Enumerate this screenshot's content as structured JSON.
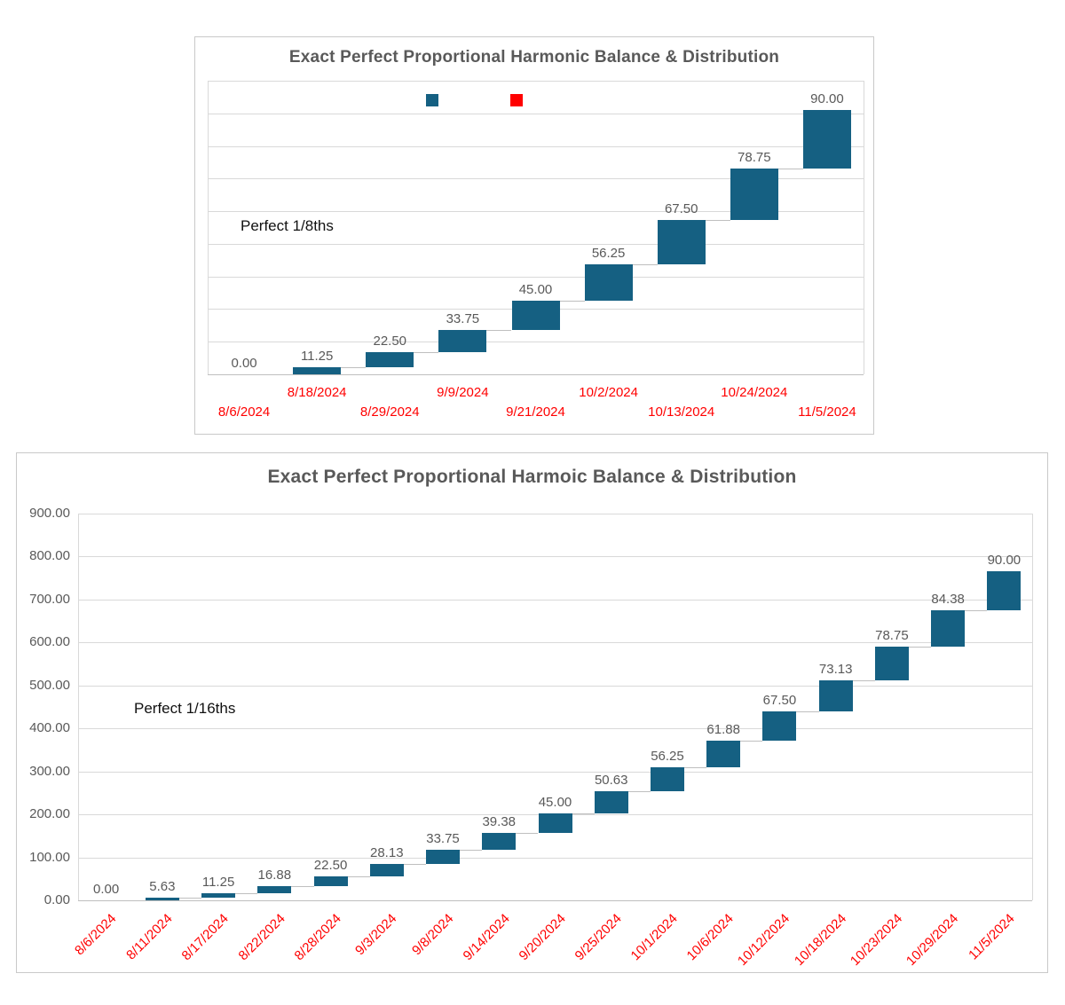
{
  "chart_data": [
    {
      "type": "bar",
      "subtype": "waterfall",
      "title": "Exact Perfect Proportional Harmonic Balance & Distribution",
      "annotation": "Perfect 1/8ths",
      "categories": [
        "8/6/2024",
        "8/18/2024",
        "8/29/2024",
        "9/9/2024",
        "9/21/2024",
        "10/2/2024",
        "10/13/2024",
        "10/24/2024",
        "11/5/2024"
      ],
      "values": [
        0,
        11.25,
        22.5,
        33.75,
        45,
        56.25,
        67.5,
        78.75,
        90
      ],
      "bar_labels": [
        "0.00",
        "11.25",
        "22.50",
        "33.75",
        "45.00",
        "56.25",
        "67.50",
        "78.75",
        "90.00"
      ],
      "cumulative_tops": [
        0,
        11.25,
        33.75,
        67.5,
        112.5,
        168.75,
        236.25,
        315,
        405
      ],
      "ylim": [
        0,
        450
      ],
      "y_step": 50,
      "y_axis_labels_visible": false,
      "x_label_layout": "staggered-two-rows",
      "grid": true,
      "legend": {
        "visible": true,
        "position": "top-center",
        "swatch_colors": [
          "#156082",
          "#ff0000"
        ],
        "labels": [
          "",
          ""
        ]
      },
      "colors": {
        "bar": "#156082",
        "value_label": "#595959",
        "x_label": "#ff0000",
        "title": "#595959",
        "gridline": "#d9d9d9"
      }
    },
    {
      "type": "bar",
      "subtype": "waterfall",
      "title": "Exact Perfect Proportional Harmoic Balance & Distribution",
      "annotation": "Perfect 1/16ths",
      "categories": [
        "8/6/2024",
        "8/11/2024",
        "8/17/2024",
        "8/22/2024",
        "8/28/2024",
        "9/3/2024",
        "9/8/2024",
        "9/14/2024",
        "9/20/2024",
        "9/25/2024",
        "10/1/2024",
        "10/6/2024",
        "10/12/2024",
        "10/18/2024",
        "10/23/2024",
        "10/29/2024",
        "11/5/2024"
      ],
      "values": [
        0,
        5.625,
        11.25,
        16.875,
        22.5,
        28.125,
        33.75,
        39.375,
        45,
        50.625,
        56.25,
        61.875,
        67.5,
        73.125,
        78.75,
        84.375,
        90
      ],
      "bar_labels": [
        "0.00",
        "5.63",
        "11.25",
        "16.88",
        "22.50",
        "28.13",
        "33.75",
        "39.38",
        "45.00",
        "50.63",
        "56.25",
        "61.88",
        "67.50",
        "73.13",
        "78.75",
        "84.38",
        "90.00"
      ],
      "cumulative_tops": [
        0,
        5.625,
        16.875,
        33.75,
        56.25,
        84.375,
        118.125,
        157.5,
        202.5,
        253.125,
        309.375,
        371.25,
        438.75,
        511.875,
        590.625,
        675,
        765
      ],
      "ylim": [
        0,
        900
      ],
      "y_step": 100,
      "y_axis_labels_visible": true,
      "y_tick_labels": [
        "0.00",
        "100.00",
        "200.00",
        "300.00",
        "400.00",
        "500.00",
        "600.00",
        "700.00",
        "800.00",
        "900.00"
      ],
      "x_label_layout": "rotated-45",
      "grid": true,
      "legend": {
        "visible": false
      },
      "colors": {
        "bar": "#156082",
        "value_label": "#595959",
        "x_label": "#ff0000",
        "title": "#595959",
        "gridline": "#d9d9d9"
      }
    }
  ]
}
